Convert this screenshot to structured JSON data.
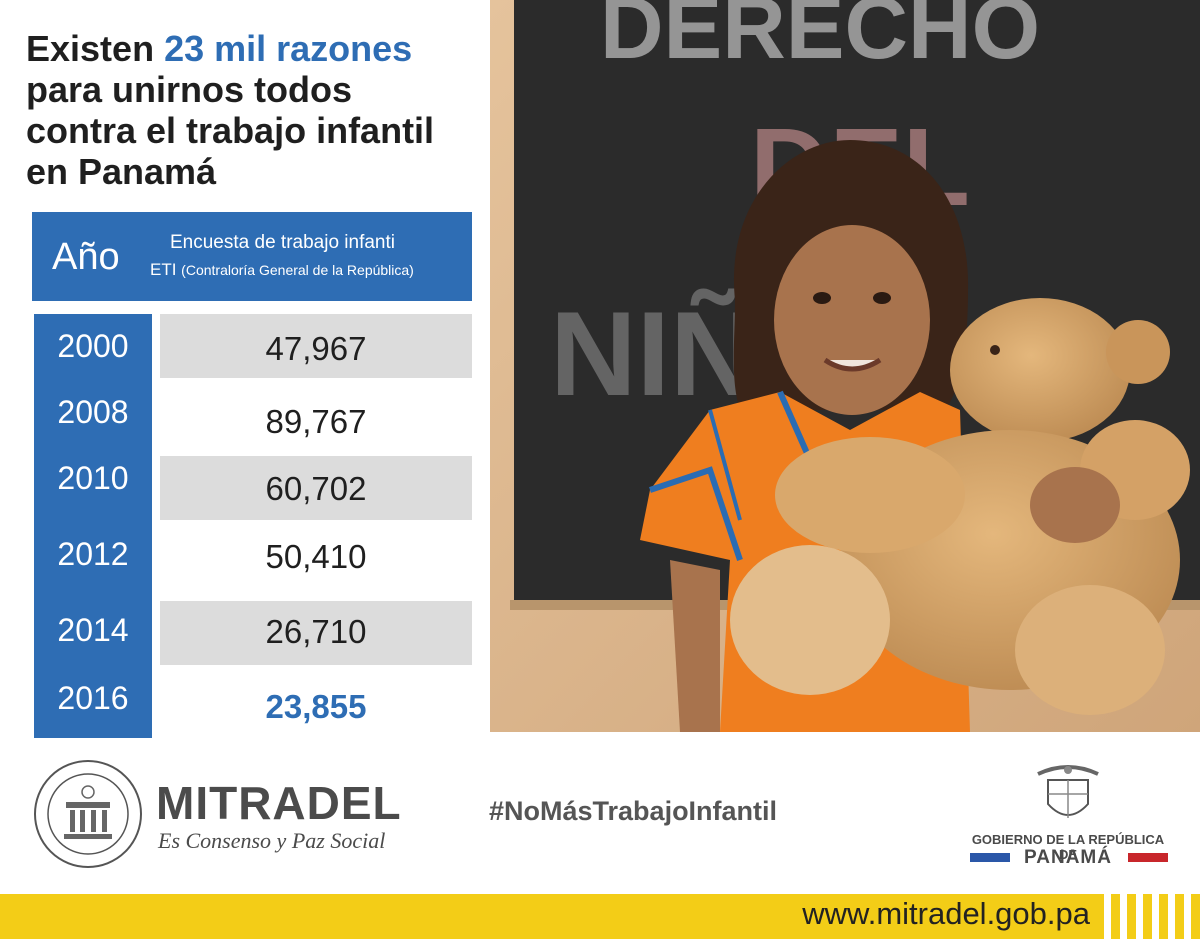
{
  "headline": {
    "prefix": "Existen ",
    "highlight": "23 mil razones",
    "line2": "para unirnos todos",
    "line3": "contra el trabajo infantil",
    "line4": "en Panamá"
  },
  "table": {
    "col_year": "Año",
    "col_survey_line1": "Encuesta de trabajo infanti",
    "col_survey_line2_main": "ETI ",
    "col_survey_line2_small": "(Contraloría General de la República)",
    "rows": [
      {
        "year": "2000",
        "value": "47,967"
      },
      {
        "year": "2008",
        "value": "89,767"
      },
      {
        "year": "2010",
        "value": "60,702"
      },
      {
        "year": "2012",
        "value": "50,410"
      },
      {
        "year": "2014",
        "value": "26,710"
      },
      {
        "year": "2016",
        "value": "23,855"
      }
    ]
  },
  "photo": {
    "chalkboard_text": [
      "DERECHO",
      "DEL",
      "NIÑ"
    ]
  },
  "footer": {
    "brand_name": "MITRADEL",
    "brand_slogan": "Es Consenso y Paz Social",
    "hashtag": "#NoMásTrabajoInfantil",
    "gov_line1": "GOBIERNO DE LA REPÚBLICA DE",
    "gov_line2": "PANAMÁ",
    "website": "www.mitradel.gob.pa"
  },
  "colors": {
    "accent_blue": "#2e6db4",
    "band_gray": "#dcdcdc",
    "footer_yellow": "#f3cd17",
    "flag_blue": "#2a57a8",
    "flag_red": "#c8262b"
  }
}
